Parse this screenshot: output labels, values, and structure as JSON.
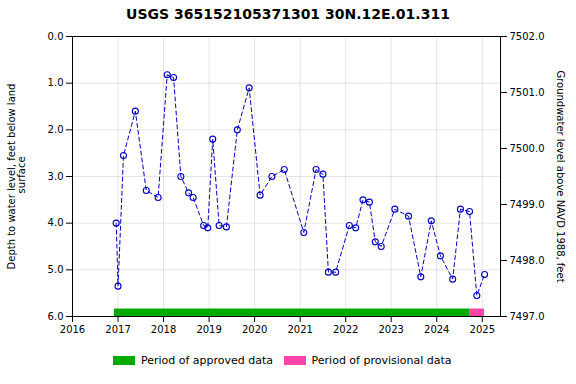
{
  "chart_data": {
    "type": "line",
    "title": "USGS 365152105371301 30N.12E.01.311",
    "ylabel": "Depth to water level, feet below land\n surface",
    "y2label": "Groundwater level above NAVD 1988, feet",
    "x": [
      2016.96,
      2017.0,
      2017.12,
      2017.38,
      2017.62,
      2017.88,
      2018.08,
      2018.22,
      2018.38,
      2018.55,
      2018.65,
      2018.88,
      2018.97,
      2019.08,
      2019.22,
      2019.38,
      2019.62,
      2019.88,
      2020.12,
      2020.38,
      2020.65,
      2021.08,
      2021.35,
      2021.5,
      2021.62,
      2021.78,
      2022.08,
      2022.22,
      2022.38,
      2022.52,
      2022.65,
      2022.78,
      2023.08,
      2023.38,
      2023.65,
      2023.88,
      2024.08,
      2024.35,
      2024.52,
      2024.72,
      2024.88,
      2025.05
    ],
    "series": [
      {
        "color": "#0000bb",
        "line_style": "dashed",
        "marker": "open circle",
        "values": [
          4.0,
          5.35,
          2.55,
          1.6,
          3.3,
          3.45,
          0.82,
          0.88,
          3.0,
          3.35,
          3.45,
          4.05,
          4.1,
          2.2,
          4.05,
          4.08,
          2.0,
          1.1,
          3.4,
          3.0,
          2.85,
          4.2,
          2.85,
          2.95,
          5.05,
          5.05,
          4.05,
          4.1,
          3.5,
          3.55,
          4.4,
          4.5,
          3.7,
          3.85,
          5.15,
          3.95,
          4.7,
          5.2,
          3.7,
          3.75,
          5.55,
          5.1
        ]
      }
    ],
    "periods": [
      {
        "name": "Period of approved data",
        "color": "#00aa00",
        "start": 2016.92,
        "end": 2024.72
      },
      {
        "name": "Period of provisional data",
        "color": "#ff44aa",
        "start": 2024.72,
        "end": 2025.05
      }
    ],
    "xlim": [
      2016.0,
      2025.4
    ],
    "xticks": [
      2016,
      2017,
      2018,
      2019,
      2020,
      2021,
      2022,
      2023,
      2024,
      2025
    ],
    "ylim": [
      6.0,
      0.0
    ],
    "yticks": [
      {
        "value": 0.0,
        "label": "0.0"
      },
      {
        "value": 1.0,
        "label": "1.0"
      },
      {
        "value": 2.0,
        "label": "2.0"
      },
      {
        "value": 3.0,
        "label": "3.0"
      },
      {
        "value": 4.0,
        "label": "4.0"
      },
      {
        "value": 5.0,
        "label": "5.0"
      },
      {
        "value": 6.0,
        "label": "6.0"
      }
    ],
    "y2lim": [
      7497.0,
      7502.0
    ],
    "y2ticks": [
      {
        "value": 7497.0,
        "label": "7497.0"
      },
      {
        "value": 7498.0,
        "label": "7498.0"
      },
      {
        "value": 7499.0,
        "label": "7499.0"
      },
      {
        "value": 7500.0,
        "label": "7500.0"
      },
      {
        "value": 7501.0,
        "label": "7501.0"
      },
      {
        "value": 7502.0,
        "label": "7502.0"
      }
    ],
    "grid": true,
    "legend": "bottom"
  }
}
